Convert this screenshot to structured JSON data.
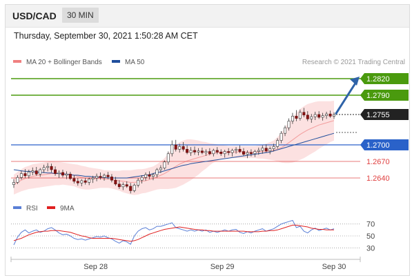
{
  "header": {
    "symbol": "USD/CAD",
    "timeframe": "30 MIN"
  },
  "datetime": "Thursday, September 30, 2021 1:50:28 AM CET",
  "legend": {
    "bollinger": {
      "label": "MA 20 + Bollinger Bands",
      "color": "#f08080"
    },
    "ma50": {
      "label": "MA 50",
      "color": "#1f4e9c"
    },
    "credit": "Research © 2021 Trading Central"
  },
  "rsi_legend": {
    "rsi": {
      "label": "RSI",
      "color": "#5a7fd6"
    },
    "ma9": {
      "label": "9MA",
      "color": "#e02020"
    }
  },
  "colors": {
    "resistance": "#4a9a0e",
    "support_blue": "#2a62c9",
    "support_red": "#e04040",
    "price": "#222222",
    "arrow": "#2f63a8"
  },
  "chart_data": [
    {
      "type": "candlestick",
      "title": "USD/CAD 30 MIN",
      "x_ticks": [
        "Sep 28",
        "Sep 29",
        "Sep 30"
      ],
      "ylim": [
        1.2605,
        1.2835
      ],
      "levels": [
        {
          "label": "1.2820",
          "value": 1.282,
          "kind": "resistance"
        },
        {
          "label": "1.2790",
          "value": 1.279,
          "kind": "resistance"
        },
        {
          "label": "1.2755",
          "value": 1.2755,
          "kind": "last-price"
        },
        {
          "label": "1.2700",
          "value": 1.27,
          "kind": "support"
        },
        {
          "label": "1.2670",
          "value": 1.267,
          "kind": "support"
        },
        {
          "label": "1.2640",
          "value": 1.264,
          "kind": "support"
        }
      ],
      "forecast_target": 1.282,
      "ohlc": [
        [
          1.2628,
          1.2638,
          1.2622,
          1.2632
        ],
        [
          1.2632,
          1.2645,
          1.2629,
          1.2641
        ],
        [
          1.2641,
          1.2653,
          1.2637,
          1.2648
        ],
        [
          1.2648,
          1.2656,
          1.264,
          1.2644
        ],
        [
          1.2644,
          1.2655,
          1.2639,
          1.2651
        ],
        [
          1.2651,
          1.2659,
          1.2645,
          1.2653
        ],
        [
          1.2653,
          1.266,
          1.2644,
          1.2647
        ],
        [
          1.2647,
          1.2658,
          1.2642,
          1.2655
        ],
        [
          1.2655,
          1.2664,
          1.2649,
          1.2659
        ],
        [
          1.2659,
          1.2667,
          1.2652,
          1.2661
        ],
        [
          1.2661,
          1.2666,
          1.265,
          1.2655
        ],
        [
          1.2655,
          1.2661,
          1.2644,
          1.2648
        ],
        [
          1.2648,
          1.2654,
          1.264,
          1.265
        ],
        [
          1.265,
          1.2655,
          1.2641,
          1.2645
        ],
        [
          1.2645,
          1.2652,
          1.2638,
          1.2647
        ],
        [
          1.2647,
          1.2651,
          1.2636,
          1.2639
        ],
        [
          1.2639,
          1.2645,
          1.263,
          1.2634
        ],
        [
          1.2634,
          1.264,
          1.2626,
          1.2631
        ],
        [
          1.2631,
          1.2638,
          1.2625,
          1.2635
        ],
        [
          1.2635,
          1.264,
          1.2628,
          1.2632
        ],
        [
          1.2632,
          1.2641,
          1.2627,
          1.2638
        ],
        [
          1.2638,
          1.2644,
          1.2631,
          1.264
        ],
        [
          1.264,
          1.2648,
          1.2634,
          1.2643
        ],
        [
          1.2643,
          1.265,
          1.2637,
          1.2641
        ],
        [
          1.2641,
          1.2648,
          1.2635,
          1.2645
        ],
        [
          1.2645,
          1.2651,
          1.2638,
          1.2642
        ],
        [
          1.2642,
          1.2647,
          1.2632,
          1.2636
        ],
        [
          1.2636,
          1.2642,
          1.2626,
          1.2629
        ],
        [
          1.2629,
          1.2636,
          1.262,
          1.2624
        ],
        [
          1.2624,
          1.2632,
          1.2618,
          1.2628
        ],
        [
          1.2628,
          1.2634,
          1.2622,
          1.2625
        ],
        [
          1.2625,
          1.2631,
          1.2612,
          1.2617
        ],
        [
          1.2617,
          1.263,
          1.2614,
          1.2627
        ],
        [
          1.2627,
          1.264,
          1.2623,
          1.2636
        ],
        [
          1.2636,
          1.2645,
          1.263,
          1.2641
        ],
        [
          1.2641,
          1.265,
          1.2635,
          1.2646
        ],
        [
          1.2646,
          1.2652,
          1.2638,
          1.2643
        ],
        [
          1.2643,
          1.2649,
          1.2636,
          1.2646
        ],
        [
          1.2646,
          1.2658,
          1.2641,
          1.2655
        ],
        [
          1.2655,
          1.2663,
          1.2649,
          1.2658
        ],
        [
          1.2658,
          1.2672,
          1.2655,
          1.2669
        ],
        [
          1.2669,
          1.2688,
          1.2664,
          1.2684
        ],
        [
          1.2684,
          1.2708,
          1.2679,
          1.27
        ],
        [
          1.27,
          1.2709,
          1.2688,
          1.2692
        ],
        [
          1.2692,
          1.2702,
          1.2686,
          1.2697
        ],
        [
          1.2697,
          1.2705,
          1.2688,
          1.2692
        ],
        [
          1.2692,
          1.2699,
          1.2683,
          1.2686
        ],
        [
          1.2686,
          1.2696,
          1.268,
          1.269
        ],
        [
          1.269,
          1.2697,
          1.2682,
          1.2687
        ],
        [
          1.2687,
          1.2694,
          1.2681,
          1.2689
        ],
        [
          1.2689,
          1.2695,
          1.2683,
          1.2686
        ],
        [
          1.2686,
          1.2692,
          1.268,
          1.2688
        ],
        [
          1.2688,
          1.2694,
          1.2681,
          1.2684
        ],
        [
          1.2684,
          1.2693,
          1.2679,
          1.269
        ],
        [
          1.269,
          1.2696,
          1.2683,
          1.2687
        ],
        [
          1.2687,
          1.2692,
          1.268,
          1.2684
        ],
        [
          1.2684,
          1.2691,
          1.2677,
          1.2688
        ],
        [
          1.2688,
          1.2694,
          1.2681,
          1.2686
        ],
        [
          1.2686,
          1.2693,
          1.2679,
          1.269
        ],
        [
          1.269,
          1.2696,
          1.2684,
          1.2692
        ],
        [
          1.2692,
          1.2699,
          1.2685,
          1.2688
        ],
        [
          1.2688,
          1.2694,
          1.268,
          1.2683
        ],
        [
          1.2683,
          1.269,
          1.2676,
          1.2686
        ],
        [
          1.2686,
          1.2692,
          1.2679,
          1.2684
        ],
        [
          1.2684,
          1.2691,
          1.2678,
          1.2688
        ],
        [
          1.2688,
          1.2695,
          1.2682,
          1.269
        ],
        [
          1.269,
          1.2699,
          1.2684,
          1.2694
        ],
        [
          1.2694,
          1.2701,
          1.2686,
          1.2689
        ],
        [
          1.2689,
          1.2697,
          1.2683,
          1.2693
        ],
        [
          1.2693,
          1.2702,
          1.2688,
          1.2697
        ],
        [
          1.2697,
          1.2712,
          1.2693,
          1.2708
        ],
        [
          1.2708,
          1.2725,
          1.2703,
          1.2721
        ],
        [
          1.2721,
          1.2735,
          1.2716,
          1.2731
        ],
        [
          1.2731,
          1.2748,
          1.2726,
          1.2743
        ],
        [
          1.2743,
          1.2758,
          1.2738,
          1.2752
        ],
        [
          1.2752,
          1.2763,
          1.2743,
          1.2748
        ],
        [
          1.2748,
          1.2764,
          1.2744,
          1.2759
        ],
        [
          1.2759,
          1.2767,
          1.275,
          1.2754
        ],
        [
          1.2754,
          1.2761,
          1.2743,
          1.2747
        ],
        [
          1.2747,
          1.2756,
          1.274,
          1.2751
        ],
        [
          1.2751,
          1.276,
          1.2745,
          1.2755
        ],
        [
          1.2755,
          1.2761,
          1.2747,
          1.275
        ],
        [
          1.275,
          1.2758,
          1.2744,
          1.2753
        ],
        [
          1.2753,
          1.276,
          1.2747,
          1.2756
        ],
        [
          1.2756,
          1.2762,
          1.2749,
          1.2752
        ],
        [
          1.2752,
          1.2759,
          1.2747,
          1.2755
        ]
      ],
      "ma20": [
        1.2628,
        1.2632,
        1.2636,
        1.2639,
        1.2641,
        1.2643,
        1.2644,
        1.2645,
        1.2646,
        1.2647,
        1.2648,
        1.2648,
        1.2648,
        1.2648,
        1.2647,
        1.2646,
        1.2645,
        1.2643,
        1.2641,
        1.264,
        1.2639,
        1.2639,
        1.2639,
        1.2639,
        1.2638,
        1.2638,
        1.2637,
        1.2636,
        1.2635,
        1.2634,
        1.2633,
        1.2632,
        1.2632,
        1.2633,
        1.2634,
        1.2635,
        1.2637,
        1.2639,
        1.2642,
        1.2645,
        1.2648,
        1.2652,
        1.2657,
        1.2661,
        1.2665,
        1.2668,
        1.2671,
        1.2673,
        1.2675,
        1.2677,
        1.2679,
        1.2681,
        1.2683,
        1.2685,
        1.2686,
        1.2687,
        1.2687,
        1.2687,
        1.2687,
        1.2687,
        1.2687,
        1.2687,
        1.2687,
        1.2687,
        1.2687,
        1.2687,
        1.2688,
        1.2688,
        1.2689,
        1.269,
        1.2692,
        1.2695,
        1.2699,
        1.2704,
        1.2709,
        1.2714,
        1.2719,
        1.2723,
        1.2727,
        1.273,
        1.2733,
        1.2736,
        1.2738,
        1.274,
        1.2742,
        1.2744
      ],
      "band_width": [
        0.0018,
        0.0019,
        0.002,
        0.0021,
        0.0021,
        0.0022,
        0.0022,
        0.0022,
        0.0022,
        0.0022,
        0.0022,
        0.0021,
        0.0021,
        0.002,
        0.002,
        0.002,
        0.002,
        0.0021,
        0.0021,
        0.0021,
        0.002,
        0.0019,
        0.0018,
        0.0017,
        0.0016,
        0.0016,
        0.0016,
        0.0017,
        0.0018,
        0.002,
        0.0021,
        0.0022,
        0.0023,
        0.0023,
        0.0022,
        0.0022,
        0.0022,
        0.0022,
        0.0023,
        0.0025,
        0.0028,
        0.0032,
        0.0036,
        0.0039,
        0.004,
        0.004,
        0.0039,
        0.0037,
        0.0034,
        0.0031,
        0.0027,
        0.0024,
        0.002,
        0.0017,
        0.0015,
        0.0013,
        0.0012,
        0.0011,
        0.0011,
        0.0011,
        0.0011,
        0.0011,
        0.0011,
        0.0011,
        0.0011,
        0.0012,
        0.0013,
        0.0014,
        0.0016,
        0.0018,
        0.0022,
        0.0027,
        0.0032,
        0.0037,
        0.0041,
        0.0044,
        0.0046,
        0.0047,
        0.0047,
        0.0046,
        0.0045,
        0.0043,
        0.0041,
        0.0039,
        0.0037,
        0.0036
      ],
      "ma50": [
        1.2655,
        1.2654,
        1.2653,
        1.2652,
        1.2652,
        1.2651,
        1.2651,
        1.265,
        1.265,
        1.2649,
        1.2649,
        1.2648,
        1.2648,
        1.2647,
        1.2647,
        1.2646,
        1.2645,
        1.2645,
        1.2644,
        1.2643,
        1.2643,
        1.2642,
        1.2642,
        1.2641,
        1.2641,
        1.264,
        1.264,
        1.264,
        1.264,
        1.264,
        1.264,
        1.2641,
        1.2642,
        1.2643,
        1.2644,
        1.2645,
        1.2646,
        1.2648,
        1.265,
        1.2651,
        1.2653,
        1.2655,
        1.2657,
        1.2659,
        1.2661,
        1.2663,
        1.2664,
        1.2666,
        1.2667,
        1.2668,
        1.2669,
        1.267,
        1.2671,
        1.2672,
        1.2673,
        1.2674,
        1.2675,
        1.2676,
        1.2677,
        1.2678,
        1.2679,
        1.268,
        1.2681,
        1.2682,
        1.2683,
        1.2684,
        1.2685,
        1.2686,
        1.2687,
        1.2689,
        1.2691,
        1.2693,
        1.2695,
        1.2697,
        1.2699,
        1.2701,
        1.2703,
        1.2705,
        1.2707,
        1.2709,
        1.2711,
        1.2713,
        1.2715,
        1.2717,
        1.2719,
        1.2721
      ]
    },
    {
      "type": "line",
      "title": "",
      "series": [
        {
          "name": "RSI",
          "values": [
            35,
            48,
            56,
            60,
            55,
            58,
            60,
            56,
            58,
            62,
            64,
            60,
            55,
            52,
            53,
            50,
            46,
            44,
            45,
            43,
            45,
            47,
            49,
            48,
            50,
            47,
            45,
            41,
            38,
            42,
            40,
            36,
            50,
            58,
            62,
            64,
            60,
            62,
            66,
            66,
            68,
            70,
            72,
            64,
            62,
            60,
            58,
            60,
            58,
            60,
            58,
            60,
            56,
            58,
            56,
            58,
            60,
            58,
            60,
            61,
            56,
            54,
            57,
            55,
            58,
            60,
            62,
            58,
            60,
            62,
            66,
            70,
            72,
            74,
            76,
            64,
            66,
            58,
            55,
            60,
            63,
            59,
            61,
            63,
            60,
            62
          ]
        },
        {
          "name": "9MA",
          "values": [
            42,
            44,
            46,
            49,
            52,
            54,
            56,
            57,
            58,
            58,
            59,
            59,
            59,
            58,
            57,
            56,
            54,
            52,
            50,
            49,
            47,
            46,
            46,
            46,
            46,
            46,
            46,
            45,
            44,
            43,
            42,
            41,
            42,
            44,
            47,
            50,
            53,
            55,
            57,
            59,
            61,
            62,
            63,
            64,
            65,
            64,
            63,
            62,
            61,
            60,
            60,
            59,
            59,
            58,
            58,
            58,
            58,
            58,
            58,
            58,
            58,
            58,
            57,
            57,
            57,
            57,
            58,
            58,
            59,
            59,
            60,
            62,
            64,
            66,
            68,
            68,
            67,
            66,
            65,
            63,
            62,
            61,
            61,
            60,
            60,
            60
          ]
        }
      ],
      "y_ticks": [
        70,
        50,
        30
      ],
      "ylim": [
        20,
        80
      ],
      "x_ticks": [
        "Sep 28",
        "Sep 29",
        "Sep 30"
      ]
    }
  ]
}
